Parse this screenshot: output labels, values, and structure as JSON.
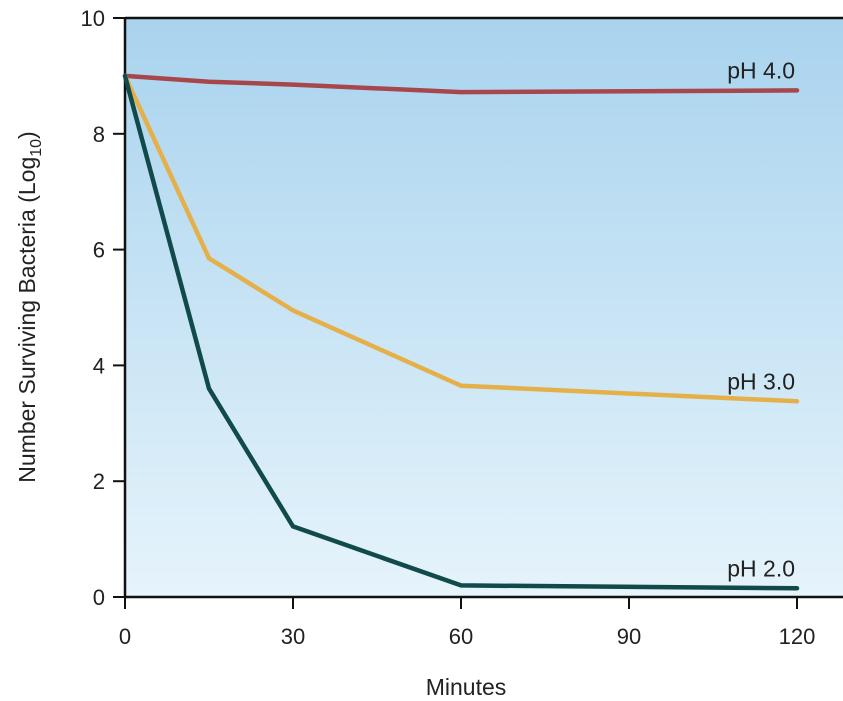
{
  "chart_data": {
    "type": "line",
    "xlabel": "Minutes",
    "ylabel": "Number Surviving Bacteria (Log",
    "ylabel_sub": "10",
    "ylabel_close": ")",
    "xlim": [
      0,
      120
    ],
    "ylim": [
      0,
      10
    ],
    "xticks": [
      0,
      30,
      60,
      90,
      120
    ],
    "yticks": [
      0,
      2,
      4,
      6,
      8,
      10
    ],
    "grid": false,
    "background_gradient": [
      "#a9d3ee",
      "#e6f4fb"
    ],
    "series": [
      {
        "name": "pH 4.0",
        "color": "#a8474b",
        "x": [
          0,
          15,
          30,
          60,
          120
        ],
        "y": [
          9.0,
          8.9,
          8.85,
          8.72,
          8.75
        ]
      },
      {
        "name": "pH 3.0",
        "color": "#e5b04a",
        "x": [
          0,
          15,
          30,
          60,
          120
        ],
        "y": [
          9.0,
          5.85,
          4.95,
          3.65,
          3.38
        ]
      },
      {
        "name": "pH 2.0",
        "color": "#114a4a",
        "x": [
          0,
          15,
          30,
          60,
          120
        ],
        "y": [
          9.0,
          3.6,
          1.22,
          0.2,
          0.15
        ]
      }
    ]
  }
}
